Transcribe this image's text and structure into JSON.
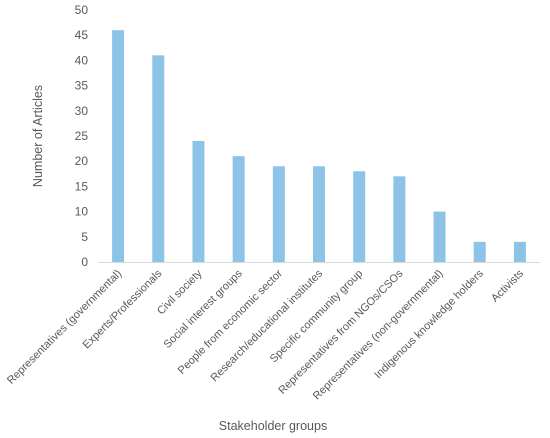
{
  "chart_data": {
    "type": "bar",
    "title": "",
    "xlabel": "Stakeholder groups",
    "ylabel": "Number of Articles",
    "ylim": [
      0,
      50
    ],
    "yticks": [
      0,
      5,
      10,
      15,
      20,
      25,
      30,
      35,
      40,
      45,
      50
    ],
    "grid": false,
    "legend": "none",
    "bar_color": "#8DC3E6",
    "categories": [
      "Representatives (governmental)",
      "Experts/Professionals",
      "Civil society",
      "Social interest groups",
      "People from economic sector",
      "Research/educational institutes",
      "Specific community group",
      "Representatives from NGOs/CSOs",
      "Representatives (non-governmental)",
      "Indigenous knowledge holders",
      "Activists"
    ],
    "values": [
      46,
      41,
      24,
      21,
      19,
      19,
      18,
      17,
      10,
      4,
      4
    ]
  }
}
